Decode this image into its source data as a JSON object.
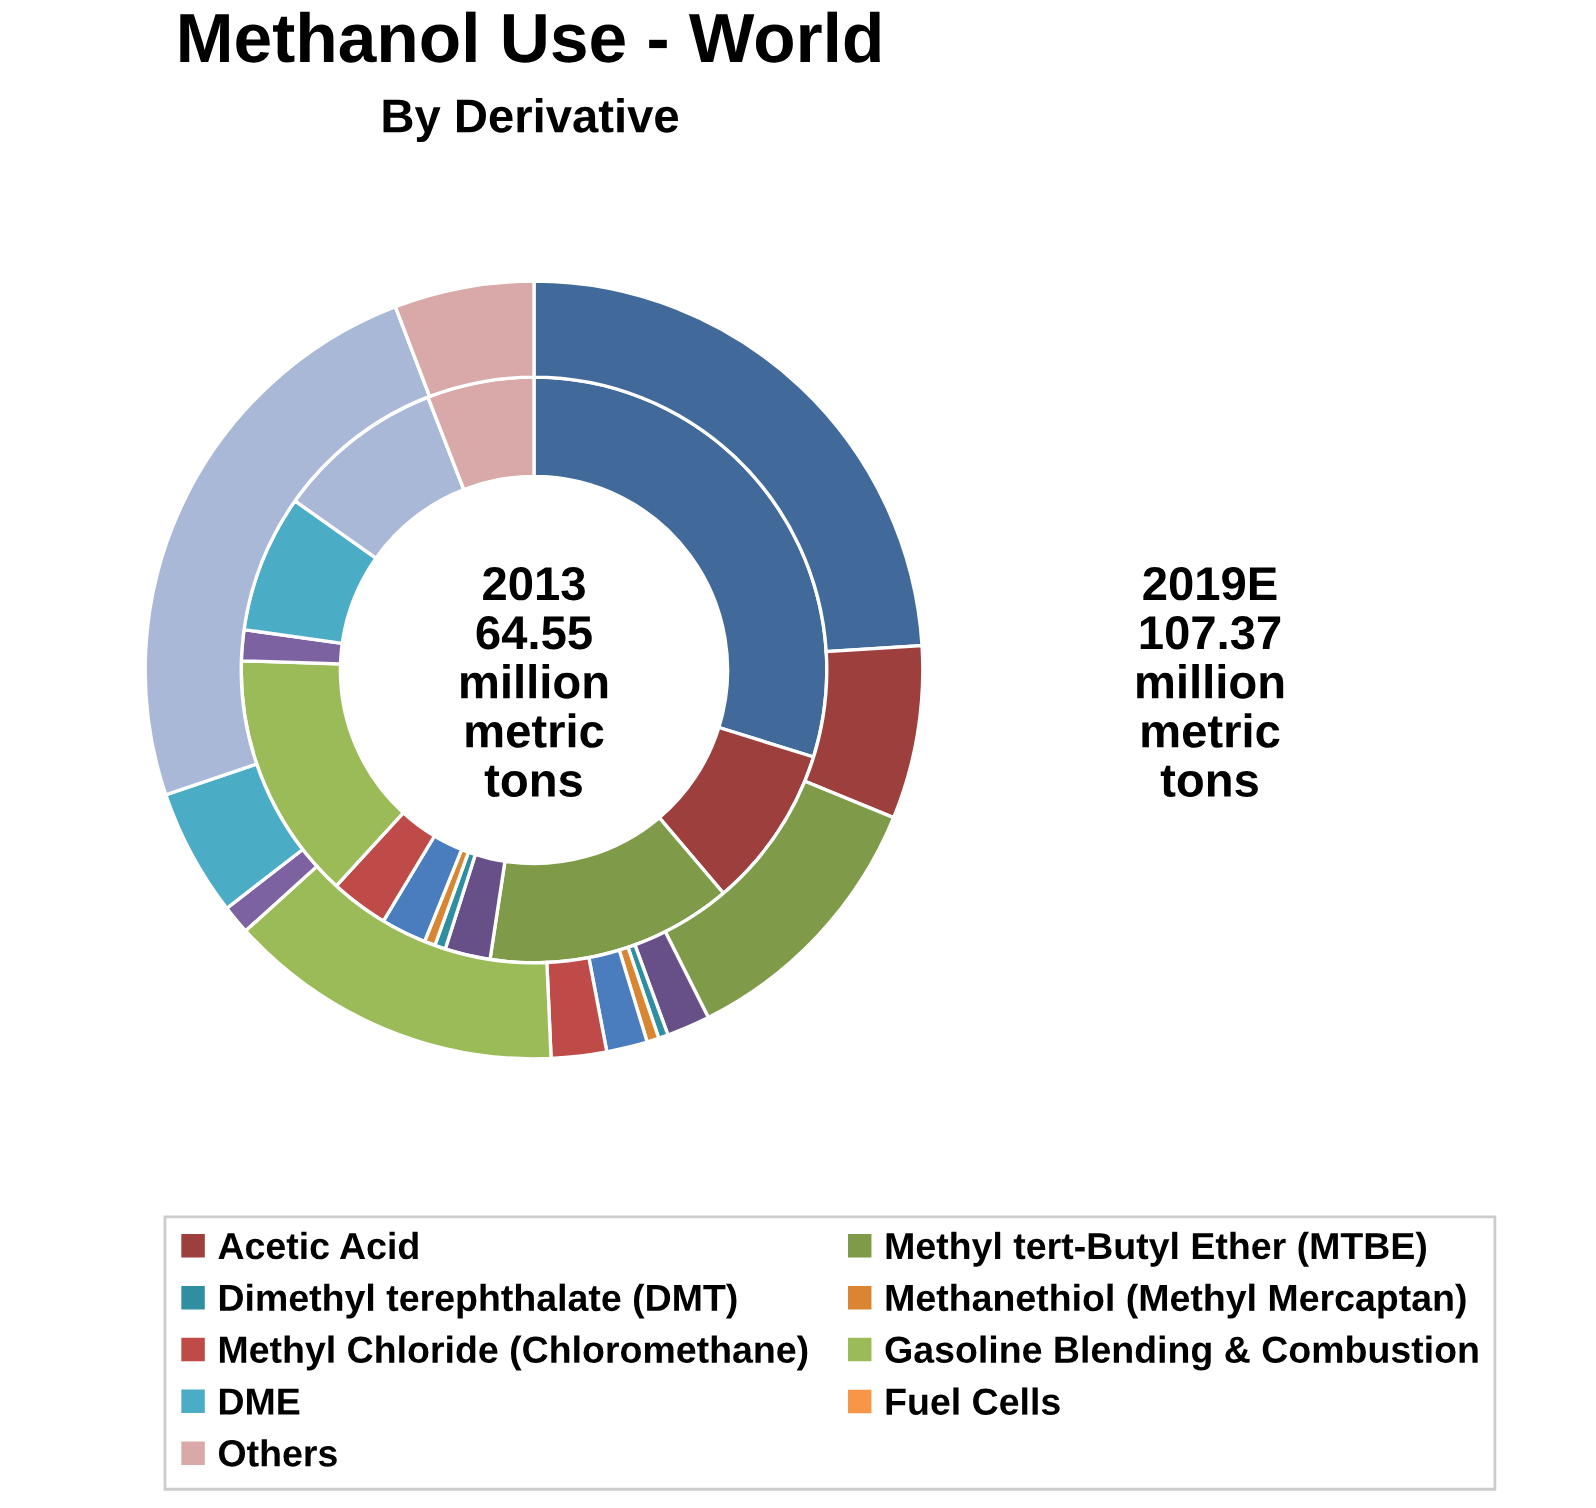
{
  "chart_data": {
    "type": "donut",
    "title": "Methanol Use - World",
    "subtitle": "By Derivative",
    "categories": [
      null,
      "Acetic Acid",
      "Methyl tert-Butyl Ether (MTBE)",
      null,
      "Dimethyl terephthalate (DMT)",
      "Methanethiol (Methyl Mercaptan)",
      null,
      "Methyl Chloride (Chloromethane)",
      "Gasoline Blending & Combustion",
      null,
      "DME",
      null,
      "Fuel Cells",
      "Others"
    ],
    "colors": [
      "#416a9a",
      "#9c3f3d",
      "#7f9a48",
      "#674f88",
      "#2f8fa0",
      "#d98532",
      "#4a7dbd",
      "#be4b48",
      "#9bbb59",
      "#7c62a0",
      "#4bacc6",
      "#a9b8d6",
      "#f79646",
      "#d9a8a8"
    ],
    "series": [
      {
        "values": [
          29.8,
          9.0,
          13.6,
          2.5,
          0.6,
          0.6,
          2.5,
          3.2,
          13.7,
          1.7,
          7.6,
          9.3,
          0,
          5.9
        ]
      },
      {
        "values": [
          24.0,
          7.2,
          11.4,
          1.8,
          0.4,
          0.5,
          1.7,
          2.3,
          14.0,
          1.2,
          5.3,
          24.4,
          0,
          5.8
        ]
      }
    ],
    "annotations": [
      "2013\n64.55\nmillion\nmetric\ntons",
      "2019E\n107.37\nmillion\nmetric\ntons"
    ],
    "legend": "bottom"
  }
}
